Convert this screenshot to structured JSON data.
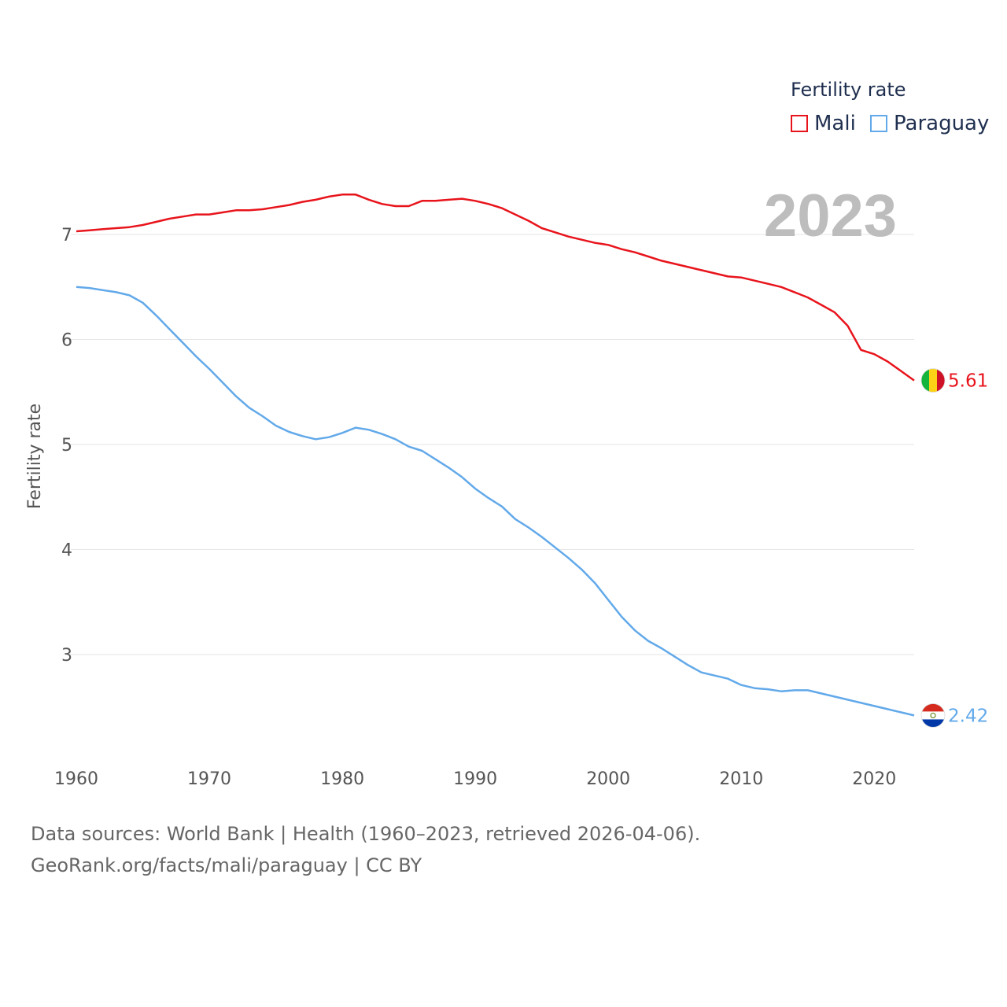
{
  "chart_data": {
    "type": "line",
    "title": "",
    "ylabel": "Fertility rate",
    "xlabel": "",
    "year_label": "2023",
    "legend_title": "Fertility rate",
    "legend_position": "top-right",
    "grid": true,
    "xlim": [
      1960,
      2023
    ],
    "ylim": [
      2.2,
      7.7
    ],
    "x_ticks": [
      "1960",
      "1970",
      "1980",
      "1990",
      "2000",
      "2010",
      "2020"
    ],
    "y_ticks": [
      "3",
      "4",
      "5",
      "6",
      "7"
    ],
    "x": [
      1960,
      1961,
      1962,
      1963,
      1964,
      1965,
      1966,
      1967,
      1968,
      1969,
      1970,
      1971,
      1972,
      1973,
      1974,
      1975,
      1976,
      1977,
      1978,
      1979,
      1980,
      1981,
      1982,
      1983,
      1984,
      1985,
      1986,
      1987,
      1988,
      1989,
      1990,
      1991,
      1992,
      1993,
      1994,
      1995,
      1996,
      1997,
      1998,
      1999,
      2000,
      2001,
      2002,
      2003,
      2004,
      2005,
      2006,
      2007,
      2008,
      2009,
      2010,
      2011,
      2012,
      2013,
      2014,
      2015,
      2016,
      2017,
      2018,
      2019,
      2020,
      2021,
      2022,
      2023
    ],
    "series": [
      {
        "name": "Mali",
        "color": "#e8141c",
        "end_label": "5.61",
        "flag": "mali-flag-icon",
        "values": [
          7.03,
          7.04,
          7.05,
          7.06,
          7.07,
          7.09,
          7.12,
          7.15,
          7.17,
          7.19,
          7.19,
          7.21,
          7.23,
          7.23,
          7.24,
          7.26,
          7.28,
          7.31,
          7.33,
          7.36,
          7.38,
          7.38,
          7.33,
          7.29,
          7.27,
          7.27,
          7.32,
          7.32,
          7.33,
          7.34,
          7.32,
          7.29,
          7.25,
          7.19,
          7.13,
          7.06,
          7.02,
          6.98,
          6.95,
          6.92,
          6.9,
          6.86,
          6.83,
          6.79,
          6.75,
          6.72,
          6.69,
          6.66,
          6.63,
          6.6,
          6.59,
          6.56,
          6.53,
          6.5,
          6.45,
          6.4,
          6.33,
          6.26,
          6.13,
          5.9,
          5.86,
          5.79,
          5.7,
          5.61
        ]
      },
      {
        "name": "Paraguay",
        "color": "#62a9ea",
        "end_label": "2.42",
        "flag": "paraguay-flag-icon",
        "values": [
          6.5,
          6.49,
          6.47,
          6.45,
          6.42,
          6.35,
          6.23,
          6.1,
          5.97,
          5.84,
          5.72,
          5.59,
          5.46,
          5.35,
          5.27,
          5.18,
          5.12,
          5.08,
          5.05,
          5.07,
          5.11,
          5.16,
          5.14,
          5.1,
          5.05,
          4.98,
          4.94,
          4.86,
          4.78,
          4.69,
          4.58,
          4.49,
          4.41,
          4.29,
          4.21,
          4.12,
          4.02,
          3.92,
          3.81,
          3.68,
          3.52,
          3.36,
          3.23,
          3.13,
          3.06,
          2.98,
          2.9,
          2.83,
          2.8,
          2.77,
          2.71,
          2.68,
          2.67,
          2.65,
          2.66,
          2.66,
          2.63,
          2.6,
          2.57,
          2.54,
          2.51,
          2.48,
          2.45,
          2.42
        ]
      }
    ]
  },
  "footer": {
    "line1": "Data sources: World Bank | Health (1960–2023, retrieved 2026-04-06).",
    "line2": "GeoRank.org/facts/mali/paraguay | CC BY"
  }
}
